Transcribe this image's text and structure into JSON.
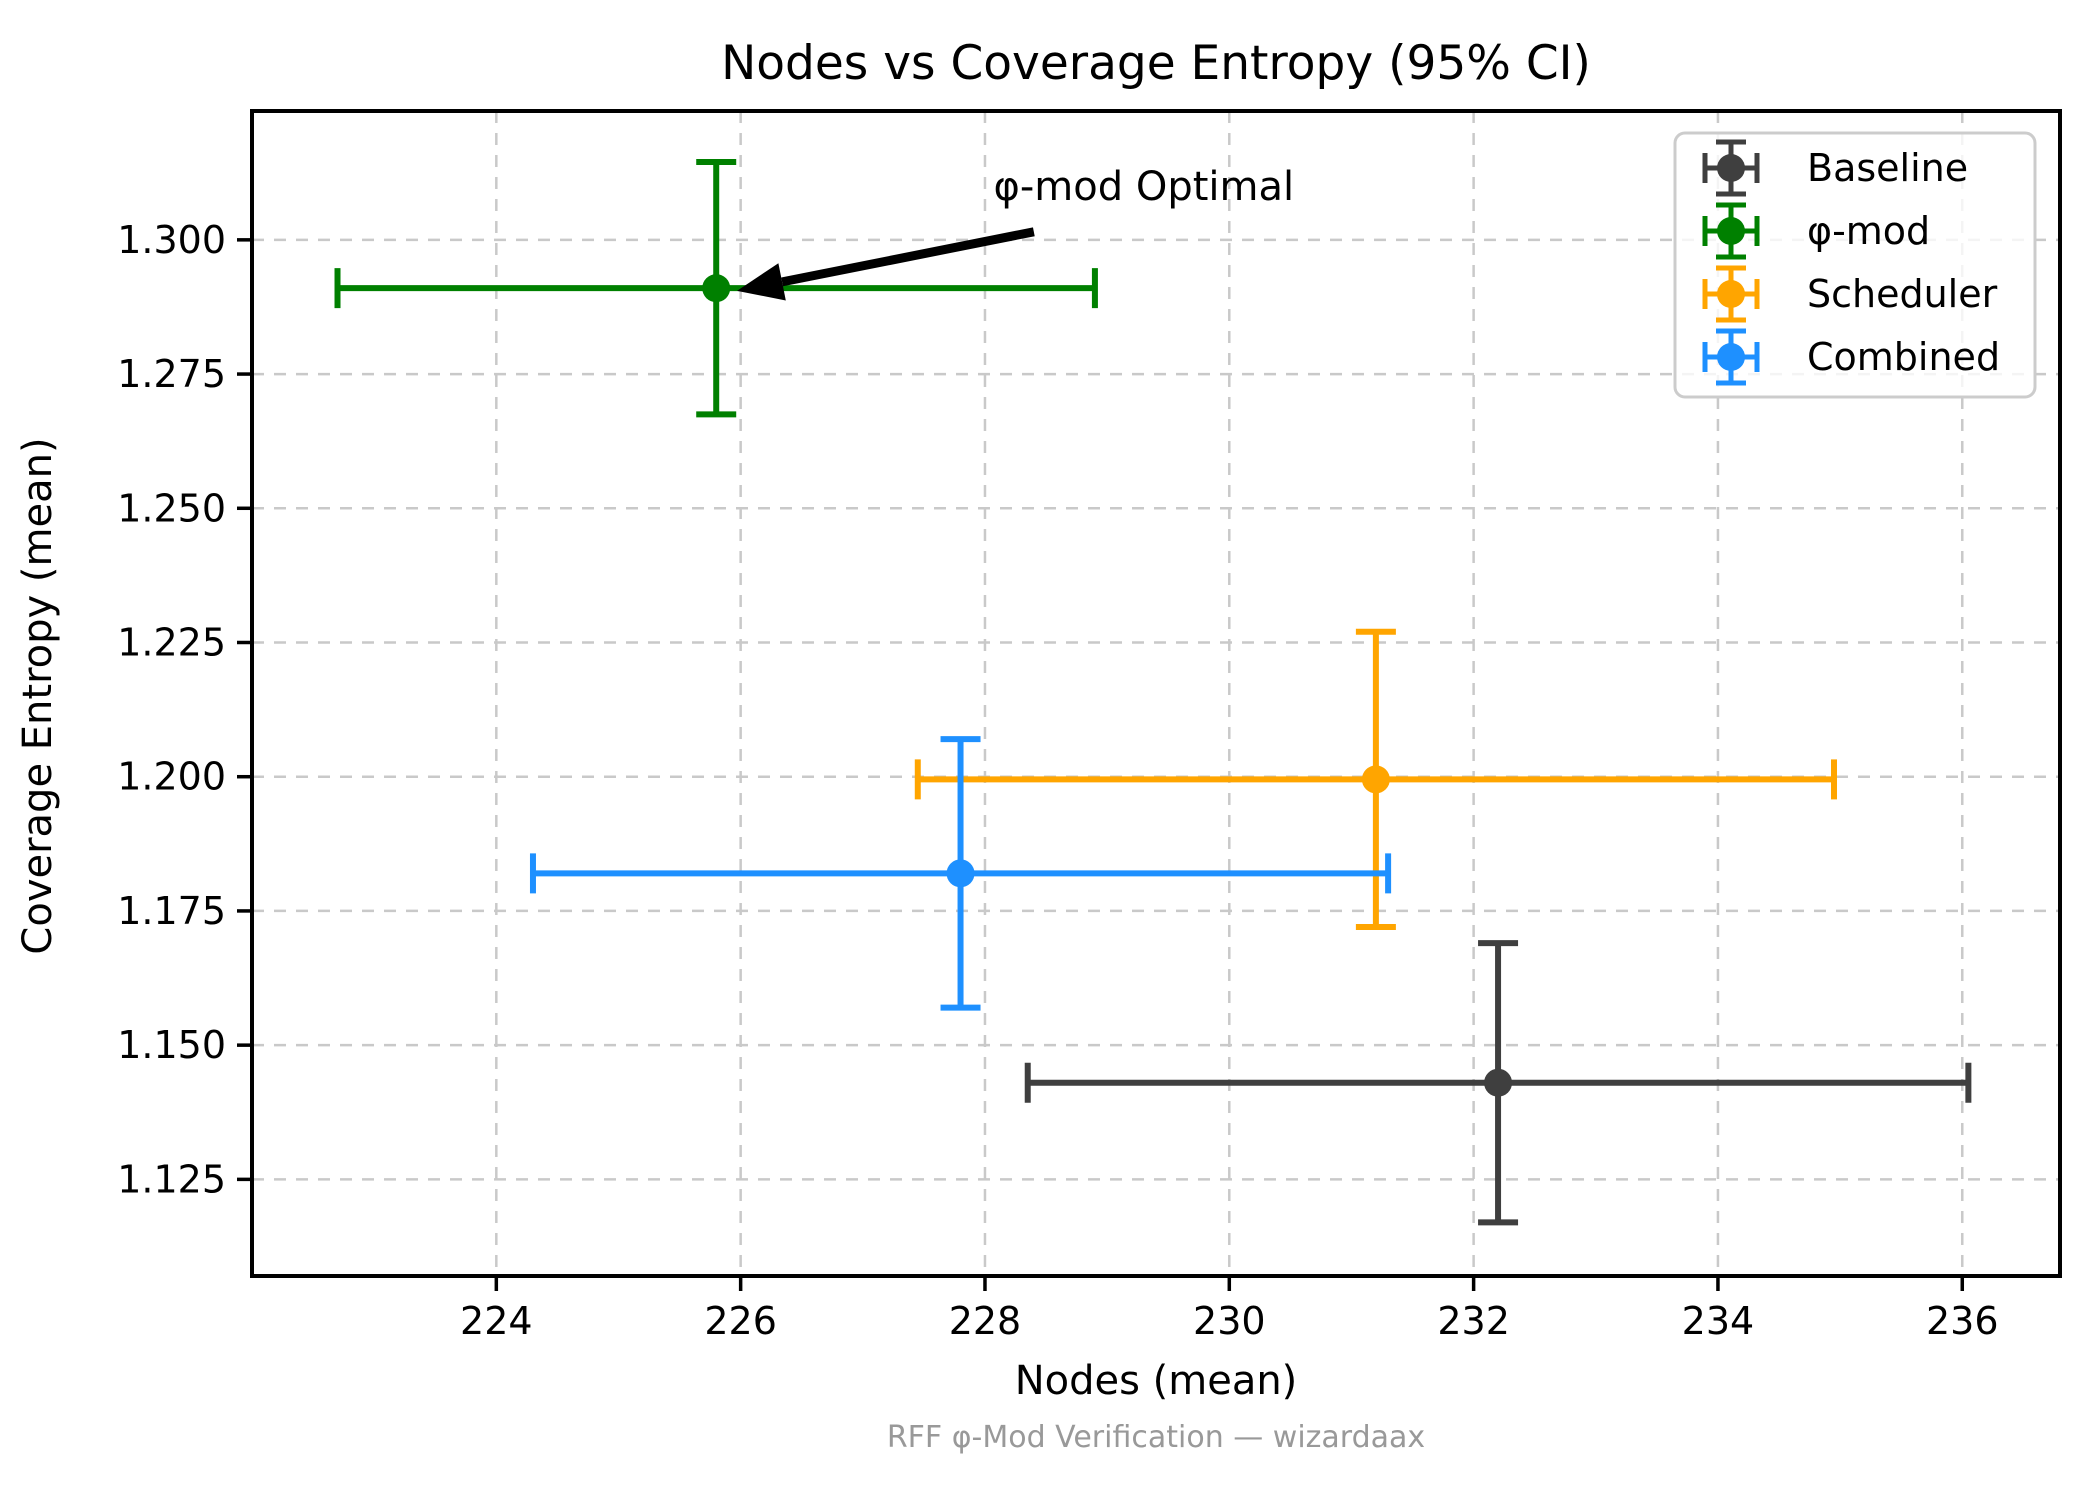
{
  "footer": "RFF φ-Mod Verification — wizardaax",
  "chart_data": {
    "type": "scatter",
    "title": "Nodes vs Coverage Entropy (95% CI)",
    "xlabel": "Nodes (mean)",
    "ylabel": "Coverage Entropy (mean)",
    "xlim": [
      222.0,
      236.8
    ],
    "ylim": [
      1.107,
      1.324
    ],
    "xticks": [
      224,
      226,
      228,
      230,
      232,
      234,
      236
    ],
    "yticks": [
      1.125,
      1.15,
      1.175,
      1.2,
      1.225,
      1.25,
      1.275,
      1.3
    ],
    "grid": true,
    "error_bars": "95% CI, symmetric, both axes",
    "series": [
      {
        "name": "Baseline",
        "color": "#3F3F3F",
        "x": 232.2,
        "y": 1.143,
        "xerr": 3.85,
        "yerr": 0.026
      },
      {
        "name": "φ-mod",
        "color": "#008000",
        "x": 225.8,
        "y": 1.291,
        "xerr": 3.1,
        "yerr": 0.0235
      },
      {
        "name": "Scheduler",
        "color": "#FFA500",
        "x": 231.2,
        "y": 1.1995,
        "xerr": 3.75,
        "yerr": 0.0275
      },
      {
        "name": "Combined",
        "color": "#1E90FF",
        "x": 227.8,
        "y": 1.182,
        "xerr": 3.5,
        "yerr": 0.025
      }
    ],
    "legend": {
      "position": "upper right",
      "labels": [
        "Baseline",
        "φ-mod",
        "Scheduler",
        "Combined"
      ]
    },
    "annotation": {
      "text": "φ-mod Optimal",
      "text_xy": [
        229.3,
        1.31
      ],
      "arrow_tail_xy": [
        228.4,
        1.3015
      ],
      "arrow_tip_xy": [
        225.97,
        1.2905
      ]
    }
  }
}
